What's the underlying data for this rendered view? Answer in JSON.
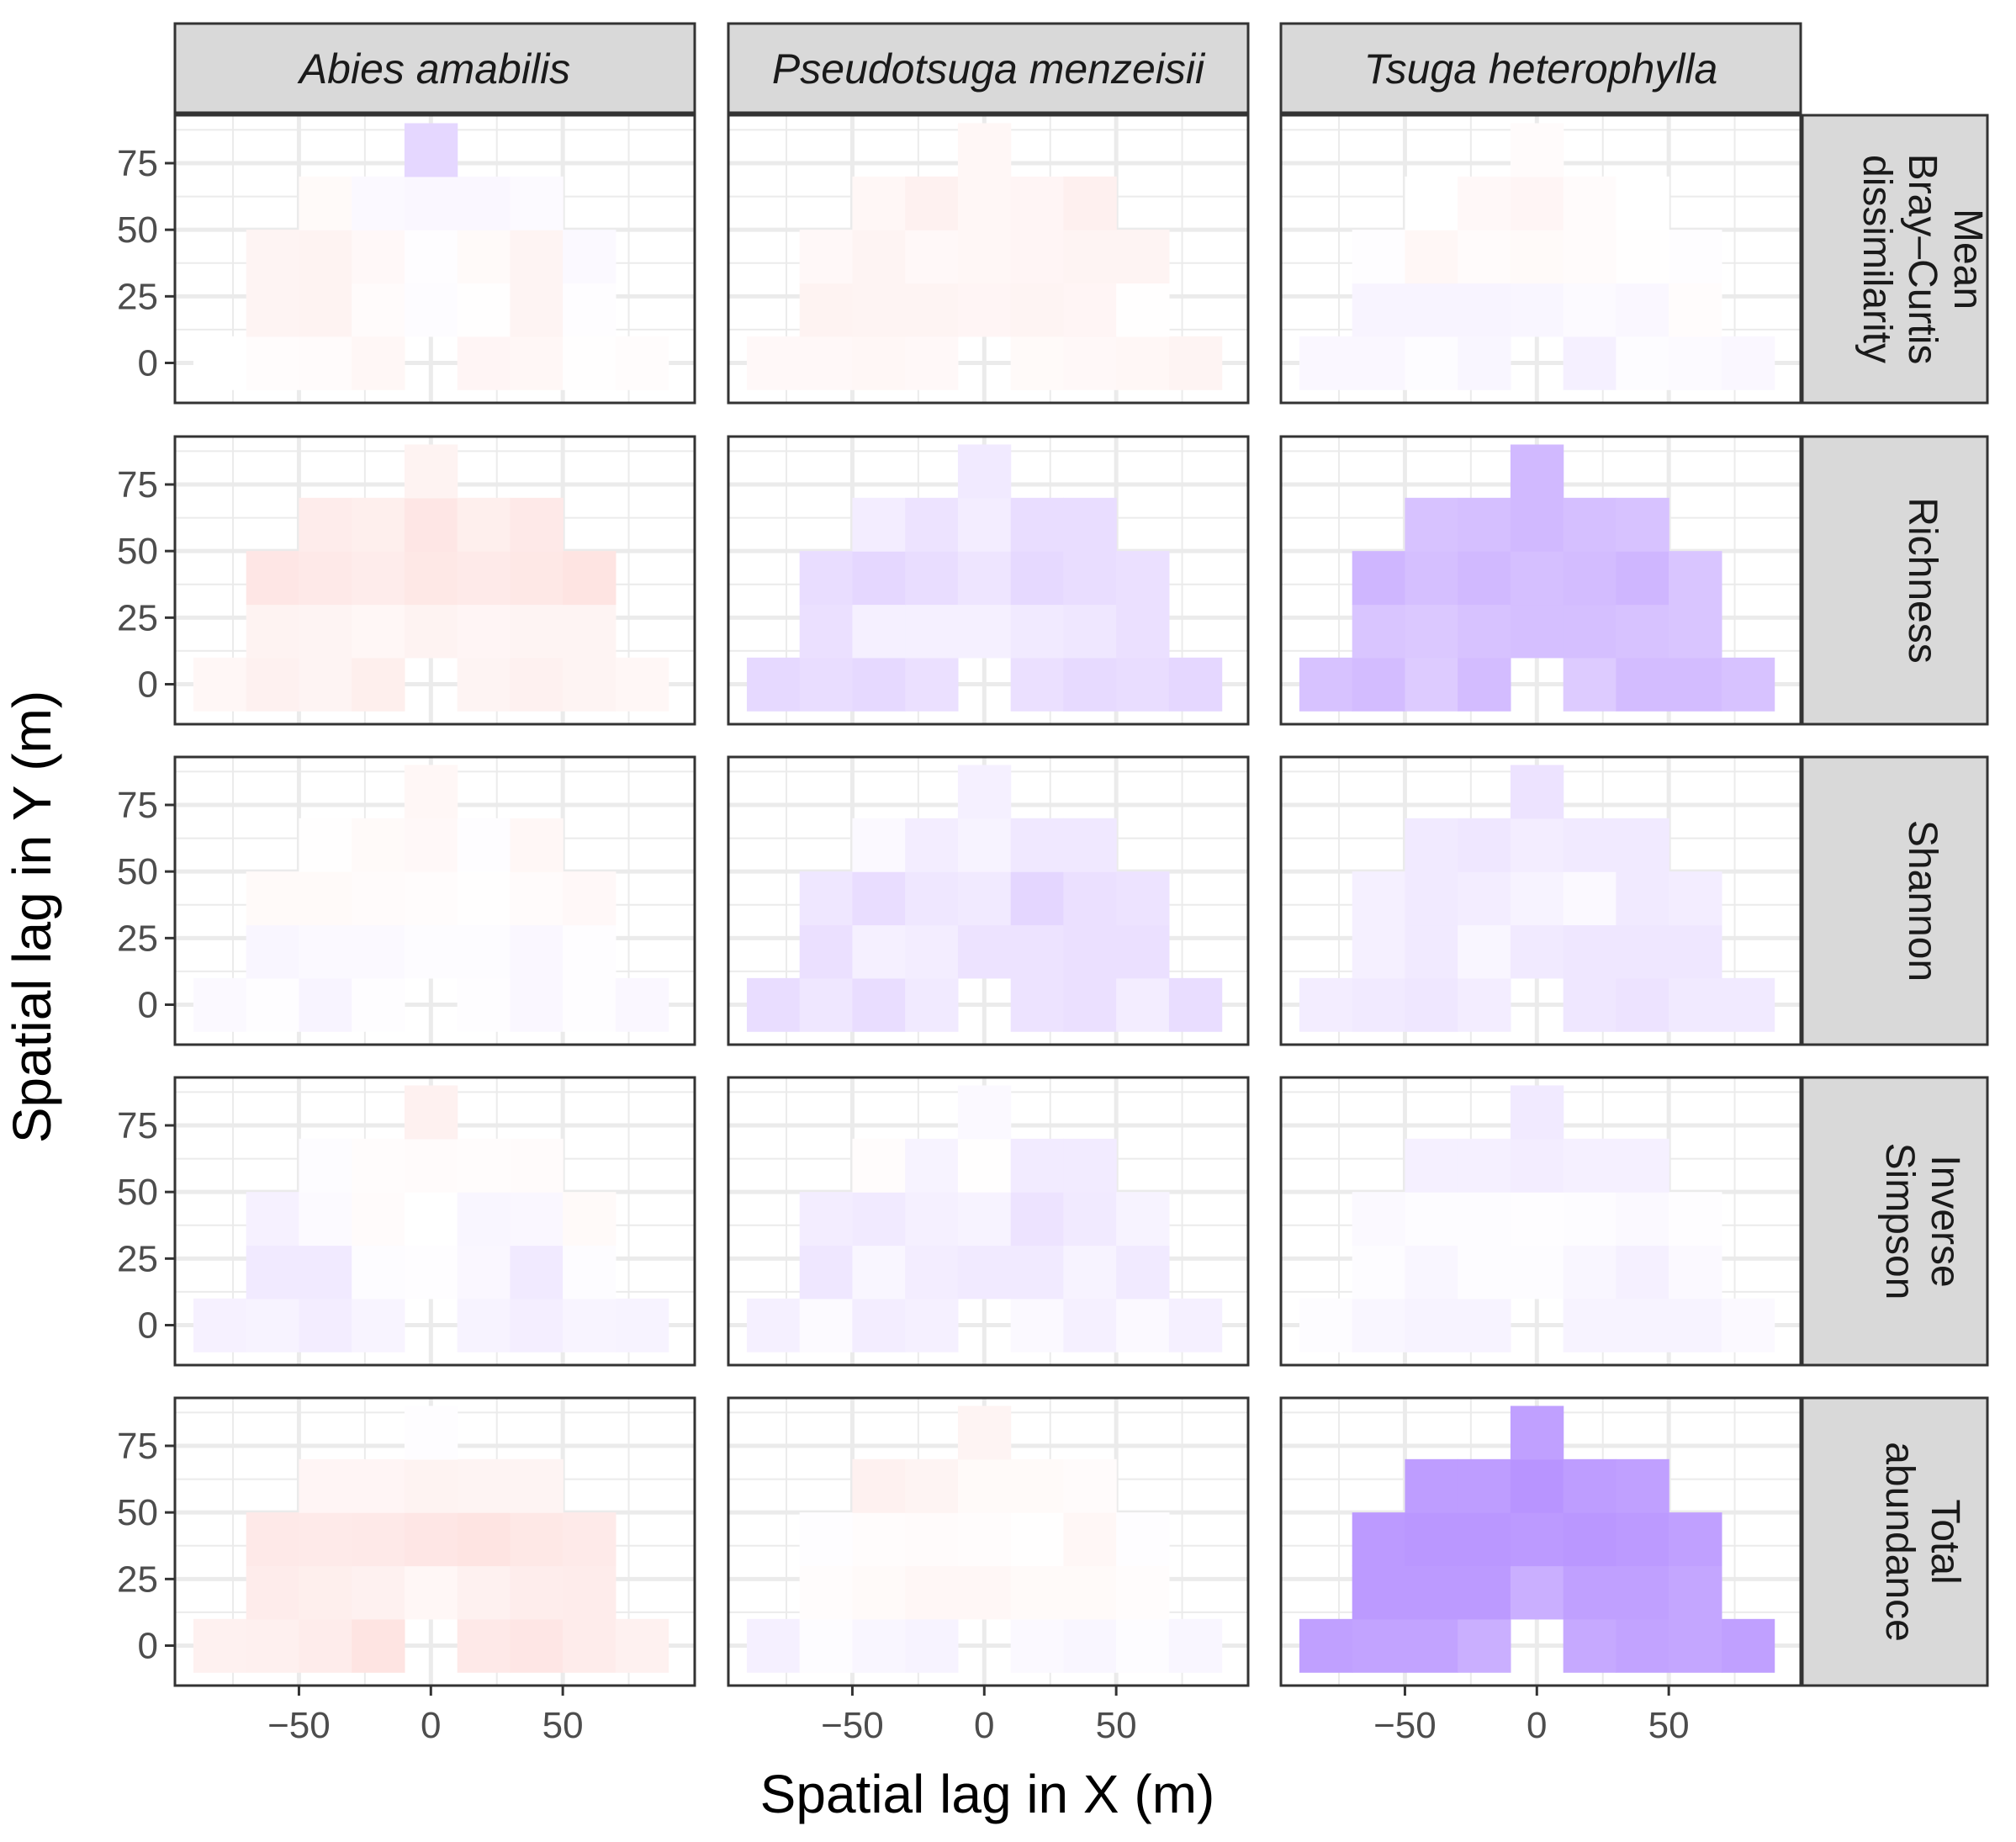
{
  "chart_data": {
    "type": "heatmap",
    "title": "",
    "xlabel": "Spatial lag in X (m)",
    "ylabel": "Spatial lag in Y (m)",
    "xlim": [
      -97,
      100
    ],
    "ylim": [
      -15,
      93
    ],
    "x_ticks": [
      -50,
      0,
      50
    ],
    "x_tick_labels": [
      "−50",
      "0",
      "50"
    ],
    "y_ticks": [
      0,
      25,
      50,
      75
    ],
    "y_tick_labels": [
      "0",
      "25",
      "50",
      "75"
    ],
    "grid": true,
    "cell_size": 20,
    "x_centers": [
      -80,
      -60,
      -40,
      -20,
      0,
      20,
      40,
      60,
      80
    ],
    "y_centers": [
      0,
      20,
      40,
      60,
      80
    ],
    "encoding": "value in [-1, 1]; negative = pink (#f8766d), positive = purple (#9a66ff), 0 = white",
    "colors": {
      "negative": "#f8766d",
      "positive": "#9a66ff",
      "zero": "#ffffff",
      "strip_bg": "#d9d9d9",
      "panel_border": "#333333",
      "grid": "#ebebeb"
    },
    "columns": [
      "Abies amabilis",
      "Pseudotsuga menzeisii",
      "Tsuga heterophylla"
    ],
    "rows": [
      {
        "label": "Mean Bray–Curtis dissimilarity",
        "lines": [
          "Mean",
          "Bray–Curtis",
          "dissimilarity"
        ]
      },
      {
        "label": "Richness",
        "lines": [
          "Richness"
        ]
      },
      {
        "label": "Shannon",
        "lines": [
          "Shannon"
        ]
      },
      {
        "label": "Inverse Simpson",
        "lines": [
          "Inverse",
          "Simpson"
        ]
      },
      {
        "label": "Total abundance",
        "lines": [
          "Total",
          "abundance"
        ]
      }
    ],
    "panels": [
      [
        [
          [
            0,
            -0.02,
            -0.03,
            -0.06,
            null,
            -0.07,
            -0.06,
            -0.01,
            -0.02
          ],
          [
            null,
            -0.08,
            -0.09,
            -0.03,
            0.02,
            -0.01,
            -0.08,
            0.01,
            null
          ],
          [
            null,
            -0.08,
            -0.09,
            -0.05,
            0.01,
            -0.04,
            -0.08,
            0.04,
            null
          ],
          [
            null,
            null,
            -0.04,
            0.04,
            0.05,
            0.05,
            0.03,
            null,
            null
          ],
          [
            null,
            null,
            null,
            null,
            0.26,
            null,
            null,
            null,
            null
          ]
        ],
        [
          [
            -0.06,
            -0.1,
            -0.08,
            -0.12,
            null,
            -0.08,
            -0.1,
            -0.08,
            -0.06
          ],
          [
            null,
            -0.09,
            -0.08,
            -0.06,
            -0.09,
            -0.07,
            -0.08,
            -0.08,
            null
          ],
          [
            null,
            -0.18,
            -0.16,
            -0.14,
            -0.17,
            -0.15,
            -0.17,
            -0.2,
            null
          ],
          [
            null,
            null,
            -0.14,
            -0.12,
            -0.18,
            -0.12,
            -0.16,
            null,
            null
          ],
          [
            null,
            null,
            null,
            null,
            -0.09,
            null,
            null,
            null,
            null
          ]
        ],
        [
          [
            0.04,
            0.01,
            0.07,
            0.01,
            null,
            0.01,
            0.05,
            0.01,
            0.05
          ],
          [
            null,
            0.06,
            0.04,
            0.04,
            0.02,
            0.02,
            0.05,
            0.01,
            null
          ],
          [
            null,
            -0.04,
            -0.04,
            -0.03,
            -0.02,
            -0.01,
            -0.03,
            -0.05,
            null
          ],
          [
            null,
            null,
            -0.01,
            -0.04,
            -0.05,
            0.01,
            -0.06,
            null,
            null
          ],
          [
            null,
            null,
            null,
            null,
            -0.06,
            null,
            null,
            null,
            null
          ]
        ],
        [
          [
            0.09,
            0.08,
            0.12,
            0.07,
            null,
            0.08,
            0.11,
            0.07,
            0.08
          ],
          [
            null,
            0.14,
            0.14,
            0.02,
            0.01,
            0.05,
            0.14,
            0.02,
            null
          ],
          [
            null,
            0.09,
            0.03,
            -0.03,
            0,
            0.06,
            0.05,
            -0.04,
            null
          ],
          [
            null,
            null,
            0.02,
            -0.02,
            -0.03,
            -0.02,
            -0.03,
            null,
            null
          ],
          [
            null,
            null,
            null,
            null,
            -0.1,
            null,
            null,
            null,
            null
          ]
        ],
        [
          [
            -0.1,
            -0.11,
            -0.14,
            -0.2,
            null,
            -0.16,
            -0.18,
            -0.14,
            -0.1
          ],
          [
            null,
            -0.14,
            -0.12,
            -0.1,
            -0.06,
            -0.1,
            -0.13,
            -0.14,
            null
          ],
          [
            null,
            -0.16,
            -0.15,
            -0.16,
            -0.18,
            -0.2,
            -0.17,
            -0.15,
            null
          ],
          [
            null,
            null,
            -0.07,
            -0.07,
            -0.09,
            -0.08,
            -0.08,
            null,
            null
          ],
          [
            null,
            null,
            null,
            null,
            0.01,
            null,
            null,
            null,
            null
          ]
        ]
      ],
      [
        [
          [
            -0.05,
            -0.05,
            -0.06,
            -0.05,
            null,
            -0.04,
            -0.05,
            -0.06,
            -0.08
          ],
          [
            null,
            -0.09,
            -0.08,
            -0.08,
            -0.07,
            -0.08,
            -0.07,
            -0.01,
            null
          ],
          [
            null,
            -0.05,
            -0.08,
            -0.05,
            -0.06,
            -0.07,
            -0.08,
            -0.08,
            null
          ],
          [
            null,
            null,
            -0.06,
            -0.1,
            -0.06,
            -0.07,
            -0.11,
            null,
            null
          ],
          [
            null,
            null,
            null,
            null,
            -0.06,
            null,
            null,
            null,
            null
          ]
        ],
        [
          [
            0.25,
            0.22,
            0.25,
            0.2,
            null,
            0.2,
            0.24,
            0.22,
            0.26
          ],
          [
            null,
            0.2,
            0.1,
            0.1,
            0.1,
            0.14,
            0.16,
            0.2,
            null
          ],
          [
            null,
            0.22,
            0.26,
            0.22,
            0.17,
            0.25,
            0.22,
            0.2,
            null
          ],
          [
            null,
            null,
            0.12,
            0.18,
            0.12,
            0.22,
            0.22,
            null,
            null
          ],
          [
            null,
            null,
            null,
            null,
            0.14,
            null,
            null,
            null,
            null
          ]
        ],
        [
          [
            0.22,
            0.16,
            0.22,
            0.14,
            null,
            0.18,
            0.2,
            0.12,
            0.22
          ],
          [
            null,
            0.2,
            0.1,
            0.12,
            0.18,
            0.18,
            0.2,
            0.2,
            null
          ],
          [
            null,
            0.16,
            0.22,
            0.16,
            0.14,
            0.27,
            0.2,
            0.18,
            null
          ],
          [
            null,
            null,
            0.04,
            0.12,
            0.08,
            0.15,
            0.15,
            null,
            null
          ],
          [
            null,
            null,
            null,
            null,
            0.1,
            null,
            null,
            null,
            null
          ]
        ],
        [
          [
            0.1,
            0.03,
            0.12,
            0.1,
            null,
            0.04,
            0.1,
            0.04,
            0.1
          ],
          [
            null,
            0.16,
            0.06,
            0.12,
            0.14,
            0.14,
            0.08,
            0.14,
            null
          ],
          [
            null,
            0.12,
            0.14,
            0.1,
            0.08,
            0.18,
            0.14,
            0.08,
            null
          ],
          [
            null,
            null,
            -0.02,
            0.08,
            -0.01,
            0.13,
            0.13,
            null,
            null
          ],
          [
            null,
            null,
            null,
            null,
            0.04,
            null,
            null,
            null,
            null
          ]
        ],
        [
          [
            0.1,
            0.02,
            0.06,
            0.08,
            null,
            0.04,
            0.06,
            0.02,
            0.06
          ],
          [
            null,
            -0.02,
            -0.04,
            -0.06,
            -0.06,
            -0.04,
            -0.04,
            -0.02,
            null
          ],
          [
            null,
            0.01,
            -0.02,
            -0.03,
            -0.02,
            -0.01,
            -0.06,
            0.01,
            null
          ],
          [
            null,
            null,
            -0.1,
            -0.08,
            -0.04,
            -0.04,
            -0.03,
            null,
            null
          ],
          [
            null,
            null,
            null,
            null,
            -0.08,
            null,
            null,
            null,
            null
          ]
        ]
      ],
      [
        [
          [
            0.05,
            0.05,
            0.02,
            0.06,
            null,
            0.1,
            0.02,
            0.03,
            0.05
          ],
          [
            null,
            0.07,
            0.07,
            0.07,
            0.06,
            0.03,
            0.05,
            -0.02,
            null
          ],
          [
            null,
            0.01,
            -0.06,
            -0.03,
            -0.04,
            -0.03,
            -0.01,
            0.01,
            null
          ],
          [
            null,
            null,
            0,
            -0.05,
            -0.07,
            -0.03,
            0,
            null,
            null
          ],
          [
            null,
            null,
            null,
            null,
            -0.03,
            null,
            null,
            null,
            null
          ]
        ],
        [
          [
            0.4,
            0.44,
            0.34,
            0.44,
            null,
            0.34,
            0.44,
            0.44,
            0.4
          ],
          [
            null,
            0.38,
            0.36,
            0.4,
            0.42,
            0.42,
            0.4,
            0.38,
            null
          ],
          [
            null,
            0.48,
            0.42,
            0.46,
            0.42,
            0.44,
            0.48,
            0.38,
            null
          ],
          [
            null,
            null,
            0.4,
            0.42,
            0.46,
            0.42,
            0.4,
            null,
            null
          ],
          [
            null,
            null,
            null,
            null,
            0.46,
            null,
            null,
            null,
            null
          ]
        ],
        [
          [
            0.12,
            0.14,
            0.16,
            0.12,
            null,
            0.16,
            0.18,
            0.14,
            0.14
          ],
          [
            null,
            0.1,
            0.14,
            0.06,
            0.14,
            0.16,
            0.16,
            0.16,
            null
          ],
          [
            null,
            0.1,
            0.14,
            0.12,
            0.08,
            0.04,
            0.14,
            0.12,
            null
          ],
          [
            null,
            null,
            0.14,
            0.16,
            0.12,
            0.14,
            0.14,
            null,
            null
          ],
          [
            null,
            null,
            null,
            null,
            0.18,
            null,
            null,
            null,
            null
          ]
        ],
        [
          [
            0.02,
            0.06,
            0.08,
            0.08,
            null,
            0.08,
            0.08,
            0.08,
            0.04
          ],
          [
            null,
            0.02,
            0.06,
            0.02,
            0.02,
            0.06,
            0.1,
            0.04,
            null
          ],
          [
            null,
            0.04,
            0.02,
            0.02,
            0.01,
            0.02,
            0.04,
            0.01,
            null
          ],
          [
            null,
            null,
            0.1,
            0.1,
            0.12,
            0.1,
            0.1,
            null,
            null
          ],
          [
            null,
            null,
            null,
            null,
            0.14,
            null,
            null,
            null,
            null
          ]
        ],
        [
          [
            0.62,
            0.6,
            0.6,
            0.52,
            null,
            0.56,
            0.6,
            0.58,
            0.62
          ],
          [
            null,
            0.66,
            0.66,
            0.66,
            0.52,
            0.62,
            0.62,
            0.58,
            null
          ],
          [
            null,
            0.66,
            0.68,
            0.68,
            0.66,
            0.68,
            0.66,
            0.62,
            null
          ],
          [
            null,
            null,
            0.64,
            0.64,
            0.7,
            0.64,
            0.62,
            null,
            null
          ],
          [
            null,
            null,
            null,
            null,
            0.62,
            null,
            null,
            null,
            null
          ]
        ]
      ]
    ]
  }
}
